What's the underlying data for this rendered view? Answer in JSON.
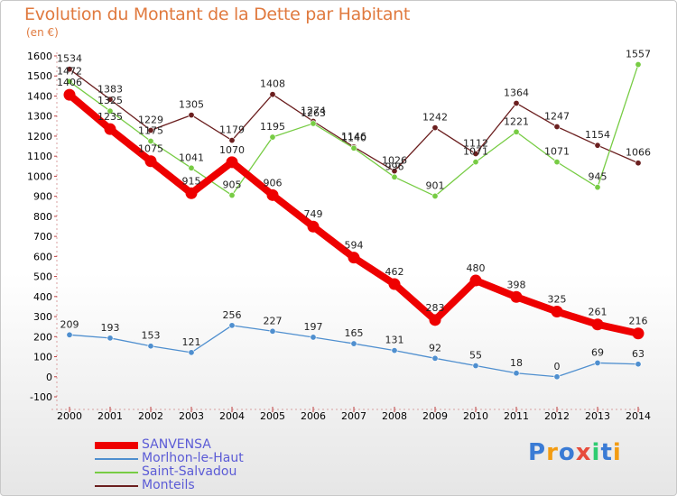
{
  "title": "Evolution du Montant de la Dette par Habitant",
  "subtitle": "(en €)",
  "logo": {
    "text": "Proxiti"
  },
  "chart_data": {
    "type": "line",
    "x": [
      "2000",
      "2001",
      "2002",
      "2003",
      "2004",
      "2005",
      "2006",
      "2007",
      "2008",
      "2009",
      "2010",
      "2011",
      "2012",
      "2013",
      "2014"
    ],
    "ylim": [
      -100,
      1600
    ],
    "yticks": [
      -100,
      0,
      100,
      200,
      300,
      400,
      500,
      600,
      700,
      800,
      900,
      1000,
      1100,
      1200,
      1300,
      1400,
      1500,
      1600
    ],
    "grid": false,
    "legend_position": "bottom-left",
    "series": [
      {
        "name": "SANVENSA",
        "color": "#ee0000",
        "values": [
          1406,
          1235,
          1075,
          915,
          1070,
          906,
          749,
          594,
          462,
          283,
          480,
          398,
          325,
          261,
          216
        ],
        "labels": [
          "1406",
          "1235",
          "1075",
          "915",
          "1070",
          "906",
          "749",
          "594",
          "462",
          "283",
          "480",
          "398",
          "325",
          "261",
          "216"
        ]
      },
      {
        "name": "Morlhon-le-Haut",
        "color": "#4f8fcf",
        "values": [
          209,
          193,
          153,
          121,
          256,
          227,
          197,
          165,
          131,
          92,
          55,
          18,
          0,
          69,
          63
        ],
        "labels": [
          "209",
          "193",
          "153",
          "121",
          "256",
          "227",
          "197",
          "165",
          "131",
          "92",
          "55",
          "18",
          "0",
          "69",
          "63"
        ]
      },
      {
        "name": "Saint-Salvadou",
        "color": "#77cc44",
        "values": [
          1472,
          1325,
          1175,
          1041,
          905,
          1195,
          1263,
          1140,
          996,
          901,
          1071,
          1221,
          1071,
          945,
          1557
        ],
        "labels": [
          "1472",
          "1325",
          "1175",
          "1041",
          "905",
          "1195",
          "1263",
          "1140",
          "996",
          "901",
          "1071",
          "1221",
          "1071",
          "945",
          "1557"
        ]
      },
      {
        "name": "Monteils",
        "color": "#6b1f1f",
        "values": [
          1534,
          1383,
          1229,
          1305,
          1179,
          1408,
          1274,
          1146,
          1026,
          1242,
          1112,
          1364,
          1247,
          1154,
          1066
        ],
        "labels": [
          "1534",
          "1383",
          "1229",
          "1305",
          "1179",
          "1408",
          "1274",
          "1146",
          "1026",
          "1242",
          "1112",
          "1364",
          "1247",
          "1154",
          "1066"
        ]
      }
    ]
  }
}
